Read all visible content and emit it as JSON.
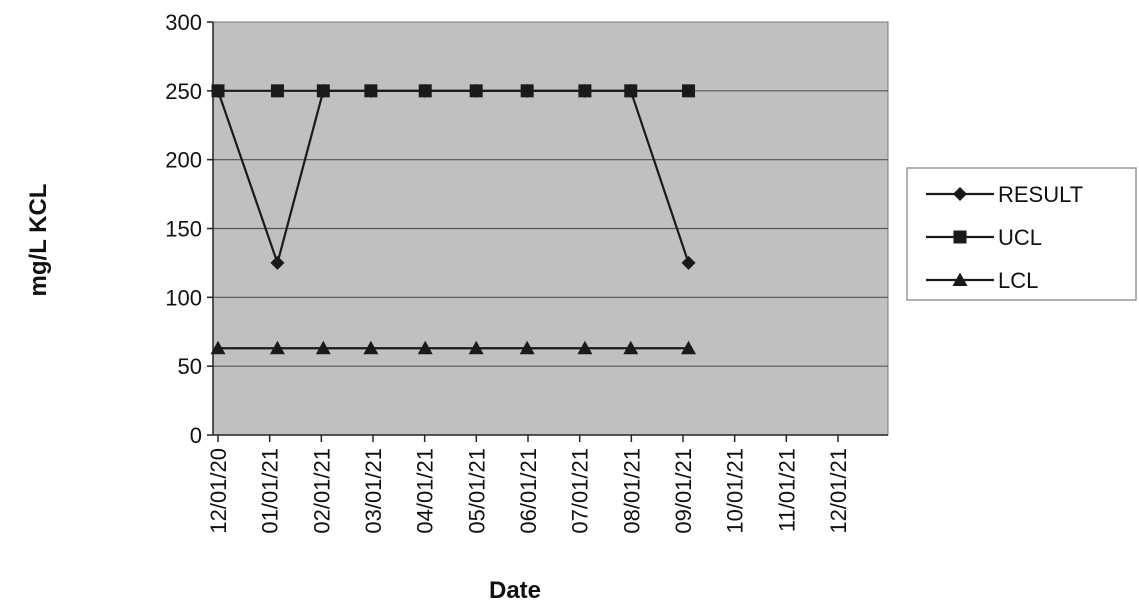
{
  "chart_data": {
    "type": "line",
    "xlabel": "Date",
    "ylabel": "mg/L KCL",
    "ylim": [
      0,
      300
    ],
    "yticks": [
      0,
      50,
      100,
      150,
      200,
      250,
      300
    ],
    "grid": "horizontal",
    "legend_position": "right",
    "colors": {
      "plot_background": "#c0c0c0",
      "line": "#1a1a1a",
      "grid": "#555555"
    },
    "x_ticks": [
      "12/01/20",
      "01/01/21",
      "02/01/21",
      "03/01/21",
      "04/01/21",
      "05/01/21",
      "06/01/21",
      "07/01/21",
      "08/01/21",
      "09/01/21",
      "10/01/21",
      "11/01/21",
      "12/01/21"
    ],
    "series": [
      {
        "name": "RESULT",
        "marker": "diamond",
        "points": [
          {
            "x": "2020-12-01",
            "y": 250
          },
          {
            "x": "2021-01-05",
            "y": 125
          },
          {
            "x": "2021-02-01",
            "y": 250
          },
          {
            "x": "2021-03-01",
            "y": 250
          },
          {
            "x": "2021-04-02",
            "y": 250
          },
          {
            "x": "2021-05-02",
            "y": 250
          },
          {
            "x": "2021-06-01",
            "y": 250
          },
          {
            "x": "2021-07-05",
            "y": 250
          },
          {
            "x": "2021-08-01",
            "y": 250
          },
          {
            "x": "2021-09-04",
            "y": 125
          }
        ]
      },
      {
        "name": "UCL",
        "marker": "square",
        "points": [
          {
            "x": "2020-12-01",
            "y": 250
          },
          {
            "x": "2021-01-05",
            "y": 250
          },
          {
            "x": "2021-02-01",
            "y": 250
          },
          {
            "x": "2021-03-01",
            "y": 250
          },
          {
            "x": "2021-04-02",
            "y": 250
          },
          {
            "x": "2021-05-02",
            "y": 250
          },
          {
            "x": "2021-06-01",
            "y": 250
          },
          {
            "x": "2021-07-05",
            "y": 250
          },
          {
            "x": "2021-08-01",
            "y": 250
          },
          {
            "x": "2021-09-04",
            "y": 250
          }
        ]
      },
      {
        "name": "LCL",
        "marker": "triangle",
        "points": [
          {
            "x": "2020-12-01",
            "y": 63
          },
          {
            "x": "2021-01-05",
            "y": 63
          },
          {
            "x": "2021-02-01",
            "y": 63
          },
          {
            "x": "2021-03-01",
            "y": 63
          },
          {
            "x": "2021-04-02",
            "y": 63
          },
          {
            "x": "2021-05-02",
            "y": 63
          },
          {
            "x": "2021-06-01",
            "y": 63
          },
          {
            "x": "2021-07-05",
            "y": 63
          },
          {
            "x": "2021-08-01",
            "y": 63
          },
          {
            "x": "2021-09-04",
            "y": 63
          }
        ]
      }
    ]
  }
}
